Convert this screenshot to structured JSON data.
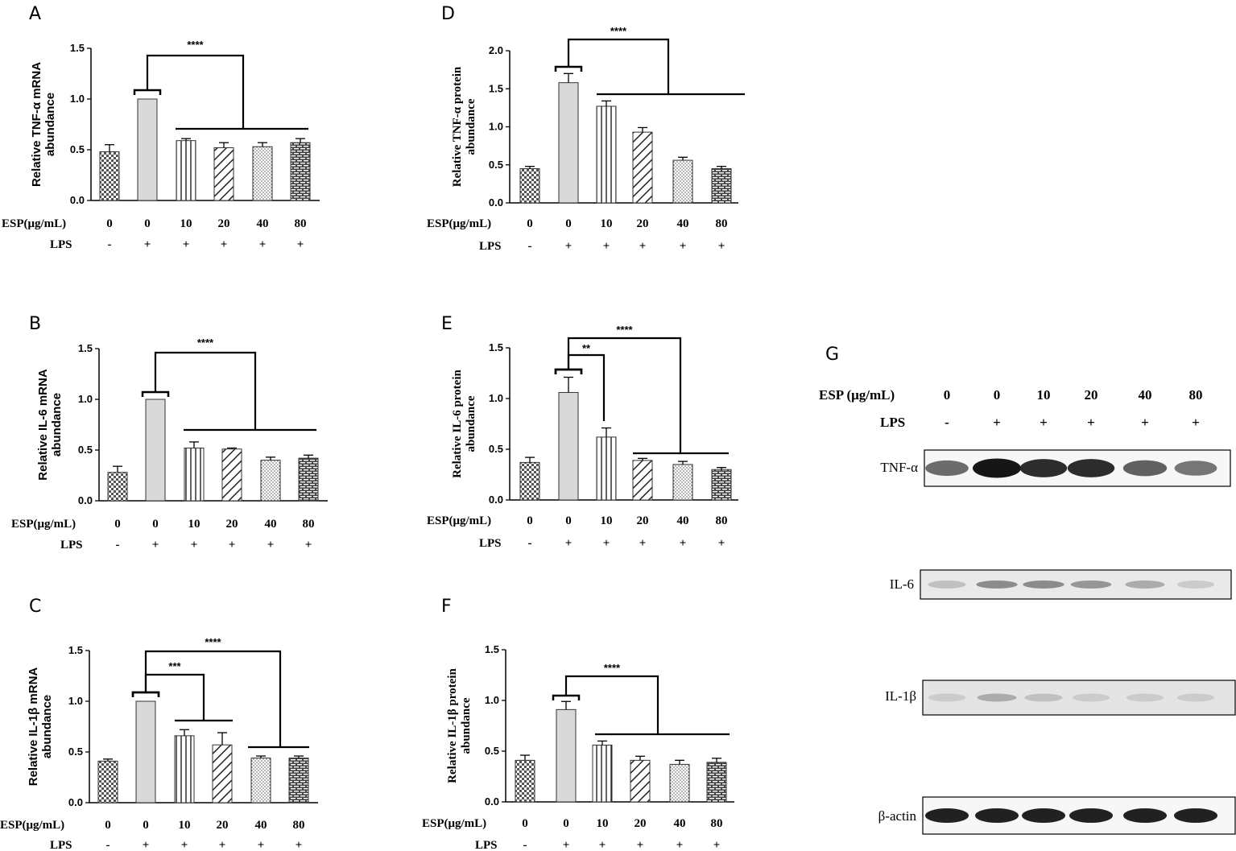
{
  "figure": {
    "letters": [
      "A",
      "B",
      "C",
      "D",
      "E",
      "F",
      "G"
    ]
  },
  "conditions": {
    "esp_label": "ESP(μg/mL)",
    "lps_label": "LPS",
    "esp_values": [
      "0",
      "0",
      "10",
      "20",
      "40",
      "80"
    ],
    "lps_values": [
      "-",
      "+",
      "+",
      "+",
      "+",
      "+"
    ]
  },
  "chart_data": [
    {
      "panel": "A",
      "type": "bar",
      "ylabel_lines": [
        "Relative TNF-α mRNA",
        "abundance"
      ],
      "ylim": [
        0,
        1.5
      ],
      "yticks": [
        "0.0",
        "0.5",
        "1.0",
        "1.5"
      ],
      "values": [
        0.48,
        1.0,
        0.59,
        0.52,
        0.53,
        0.57
      ],
      "errors": [
        0.07,
        0.0,
        0.02,
        0.05,
        0.04,
        0.04
      ],
      "significance": [
        {
          "label": "****",
          "to": "2-5"
        }
      ]
    },
    {
      "panel": "B",
      "type": "bar",
      "ylabel_lines": [
        "Relative IL-6 mRNA",
        "abundance"
      ],
      "ylim": [
        0,
        1.5
      ],
      "yticks": [
        "0.0",
        "0.5",
        "1.0",
        "1.5"
      ],
      "values": [
        0.28,
        1.0,
        0.52,
        0.51,
        0.4,
        0.42
      ],
      "errors": [
        0.06,
        0.0,
        0.06,
        0.01,
        0.03,
        0.03
      ],
      "significance": [
        {
          "label": "****",
          "to": "2-5"
        }
      ]
    },
    {
      "panel": "C",
      "type": "bar",
      "ylabel_lines": [
        "Relative IL-1β mRNA",
        "abundance"
      ],
      "ylim": [
        0,
        1.5
      ],
      "yticks": [
        "0.0",
        "0.5",
        "1.0",
        "1.5"
      ],
      "values": [
        0.41,
        1.0,
        0.66,
        0.57,
        0.44,
        0.44
      ],
      "errors": [
        0.02,
        0.0,
        0.06,
        0.12,
        0.02,
        0.02
      ],
      "significance": [
        {
          "label": "***",
          "to": "2-3"
        },
        {
          "label": "****",
          "to": "4-5"
        }
      ]
    },
    {
      "panel": "D",
      "type": "bar",
      "ylabel_lines": [
        "Relative  TNF-α protein",
        "abundance"
      ],
      "ylim": [
        0,
        2.0
      ],
      "yticks": [
        "0.0",
        "0.5",
        "1.0",
        "1.5",
        "2.0"
      ],
      "values": [
        0.45,
        1.58,
        1.27,
        0.93,
        0.56,
        0.45
      ],
      "errors": [
        0.03,
        0.12,
        0.07,
        0.06,
        0.04,
        0.03
      ],
      "significance": [
        {
          "label": "****",
          "to": "2-5"
        }
      ]
    },
    {
      "panel": "E",
      "type": "bar",
      "ylabel_lines": [
        "Relative  IL-6 protein",
        "abundance"
      ],
      "ylim": [
        0,
        1.5
      ],
      "yticks": [
        "0.0",
        "0.5",
        "1.0",
        "1.5"
      ],
      "values": [
        0.37,
        1.06,
        0.62,
        0.39,
        0.35,
        0.3
      ],
      "errors": [
        0.05,
        0.15,
        0.09,
        0.02,
        0.03,
        0.02
      ],
      "significance": [
        {
          "label": "**",
          "to": "2"
        },
        {
          "label": "****",
          "to": "3-5"
        }
      ]
    },
    {
      "panel": "F",
      "type": "bar",
      "ylabel_lines": [
        "Relative  IL-1β protein",
        "abundance"
      ],
      "ylim": [
        0,
        1.5
      ],
      "yticks": [
        "0.0",
        "0.5",
        "1.0",
        "1.5"
      ],
      "values": [
        0.41,
        0.91,
        0.56,
        0.41,
        0.37,
        0.39
      ],
      "errors": [
        0.05,
        0.08,
        0.04,
        0.04,
        0.04,
        0.04
      ],
      "significance": [
        {
          "label": "****",
          "to": "2-5"
        }
      ]
    }
  ],
  "blot": {
    "esp_label": "ESP (μg/mL)",
    "lps_label": "LPS",
    "esp_values": [
      "0",
      "0",
      "10",
      "20",
      "40",
      "80"
    ],
    "lps_values": [
      "-",
      "+",
      "+",
      "+",
      "+",
      "+"
    ],
    "bands": [
      {
        "label": "TNF-α",
        "intensity": [
          0.6,
          1.0,
          0.9,
          0.9,
          0.65,
          0.55
        ]
      },
      {
        "label": "IL-6",
        "intensity": [
          0.2,
          0.45,
          0.45,
          0.4,
          0.3,
          0.15
        ]
      },
      {
        "label": "IL-1β",
        "intensity": [
          0.15,
          0.3,
          0.2,
          0.15,
          0.15,
          0.15
        ]
      },
      {
        "label": "β-actin",
        "intensity": [
          0.95,
          0.95,
          0.95,
          0.95,
          0.95,
          0.95
        ]
      }
    ]
  }
}
